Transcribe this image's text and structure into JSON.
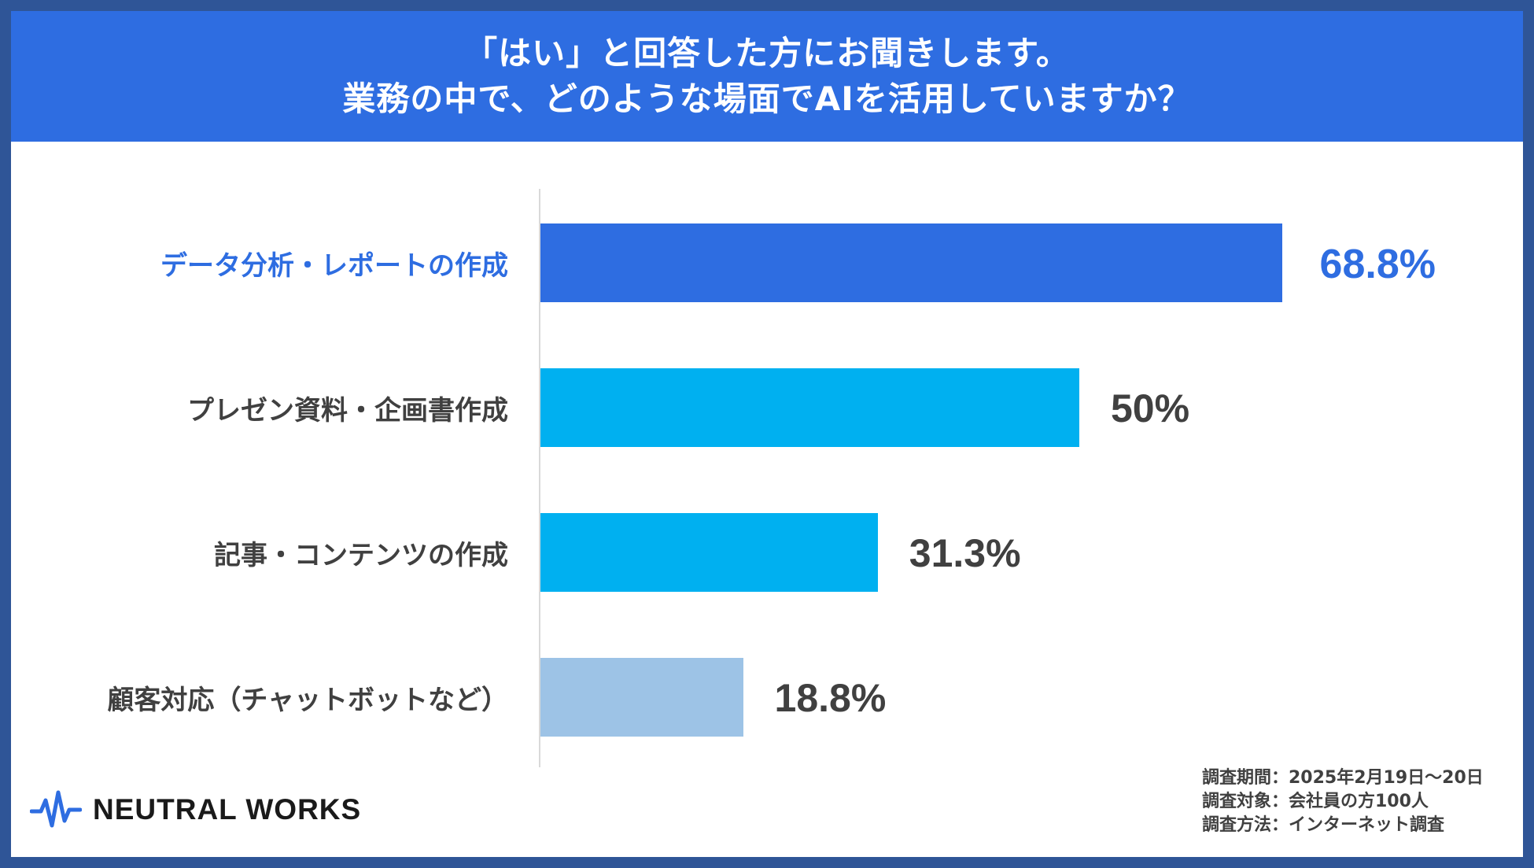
{
  "header": {
    "line1": "「はい」と回答した方にお聞きします。",
    "line2": "業務の中で、どのような場面でAIを活用していますか？"
  },
  "chart_data": {
    "type": "bar",
    "orientation": "horizontal",
    "title": "「はい」と回答した方にお聞きします。業務の中で、どのような場面でAIを活用していますか？",
    "categories": [
      "データ分析・レポートの作成",
      "プレゼン資料・企画書作成",
      "記事・コンテンツの作成",
      "顧客対応（チャットボットなど）"
    ],
    "values": [
      68.8,
      50,
      31.3,
      18.8
    ],
    "value_labels": [
      "68.8%",
      "50%",
      "31.3%",
      "18.8%"
    ],
    "colors": [
      "#2e6de1",
      "#00b0f0",
      "#00b0f0",
      "#9dc3e6"
    ],
    "highlight_index": 0,
    "highlight_color": "#2e6de1",
    "xlim": [
      0,
      100
    ],
    "grid": false,
    "legend": "none"
  },
  "footer": {
    "logo_text": "NEUTRAL WORKS",
    "survey_period": "調査期間：2025年2月19日～20日",
    "survey_target": "調査対象：会社員の方100人",
    "survey_method": "調査方法：インターネット調査"
  }
}
